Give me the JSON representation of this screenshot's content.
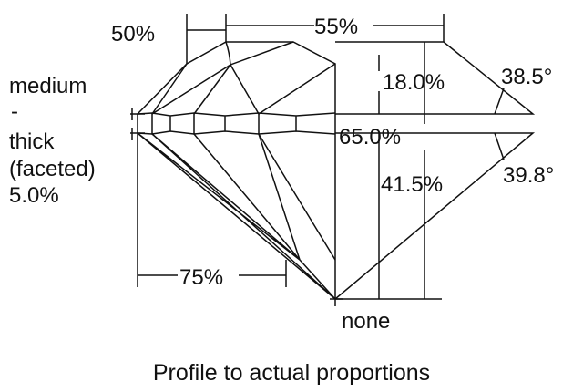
{
  "labels": {
    "crown_height_pct": "50%",
    "table_pct": "55%",
    "girdle_line1": "medium",
    "girdle_line2": "-",
    "girdle_line3": "thick",
    "girdle_line4": "(faceted)",
    "girdle_pct": "5.0%",
    "crown_depth_pct": "18.0%",
    "crown_angle": "38.5°",
    "total_depth_pct": "65.0%",
    "pavilion_depth_pct": "41.5%",
    "pavilion_angle": "39.8°",
    "lower_half_pct": "75%",
    "culet": "none"
  },
  "caption": "Profile to actual proportions",
  "colors": {
    "line": "#111111",
    "background": "#ffffff"
  }
}
